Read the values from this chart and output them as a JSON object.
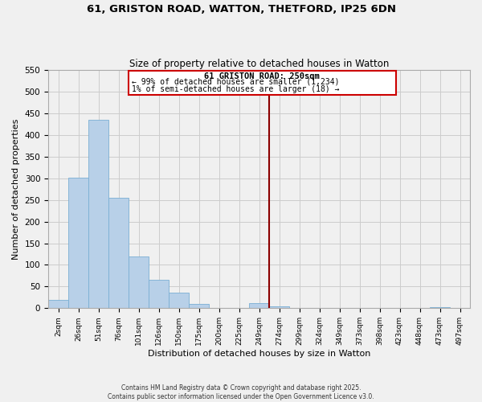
{
  "title": "61, GRISTON ROAD, WATTON, THETFORD, IP25 6DN",
  "subtitle": "Size of property relative to detached houses in Watton",
  "xlabel": "Distribution of detached houses by size in Watton",
  "ylabel": "Number of detached properties",
  "bin_labels": [
    "2sqm",
    "26sqm",
    "51sqm",
    "76sqm",
    "101sqm",
    "126sqm",
    "150sqm",
    "175sqm",
    "200sqm",
    "225sqm",
    "249sqm",
    "274sqm",
    "299sqm",
    "324sqm",
    "349sqm",
    "373sqm",
    "398sqm",
    "423sqm",
    "448sqm",
    "473sqm",
    "497sqm"
  ],
  "bar_values": [
    20,
    302,
    435,
    255,
    120,
    65,
    35,
    10,
    0,
    0,
    12,
    4,
    0,
    0,
    0,
    0,
    0,
    0,
    0,
    2,
    0
  ],
  "bar_color": "#b8d0e8",
  "bar_edge_color": "#7aafd4",
  "vline_x_index": 10.5,
  "vline_color": "#8b0000",
  "annotation_title": "61 GRISTON ROAD: 250sqm",
  "annotation_line1": "← 99% of detached houses are smaller (1,234)",
  "annotation_line2": "1% of semi-detached houses are larger (18) →",
  "annotation_box_color": "#cc0000",
  "ylim": [
    0,
    550
  ],
  "yticks": [
    0,
    50,
    100,
    150,
    200,
    250,
    300,
    350,
    400,
    450,
    500,
    550
  ],
  "footer1": "Contains HM Land Registry data © Crown copyright and database right 2025.",
  "footer2": "Contains public sector information licensed under the Open Government Licence v3.0.",
  "bg_color": "#f0f0f0",
  "grid_color": "#cccccc"
}
